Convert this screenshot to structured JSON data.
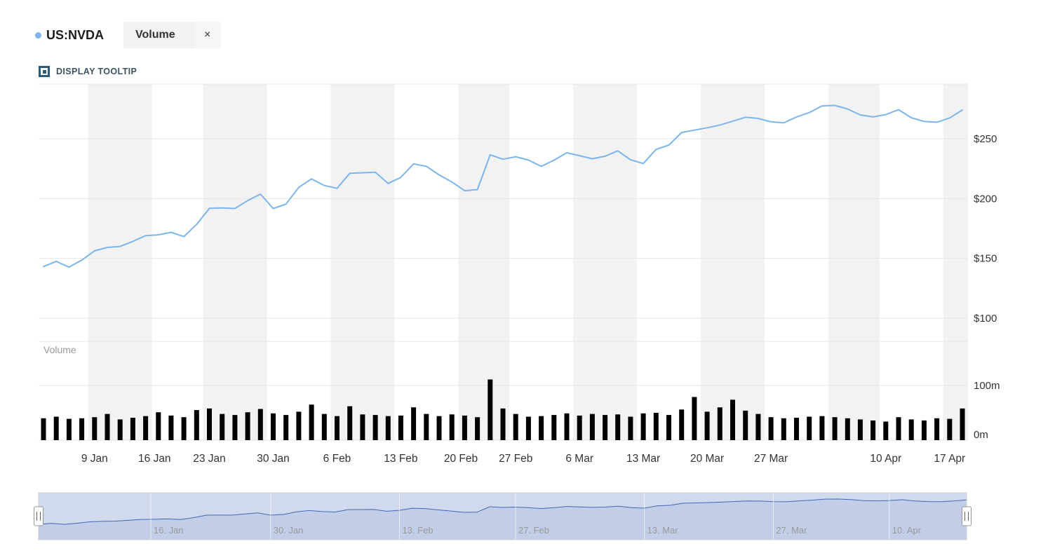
{
  "legend": {
    "symbol": "US:NVDA",
    "dot_color": "#7cb5ec",
    "indicator_tab": {
      "label": "Volume",
      "close": "×"
    }
  },
  "tooltip_toggle": {
    "label": "DISPLAY TOOLTIP"
  },
  "chart_data": {
    "type": "line",
    "title": "",
    "x": [
      "3 Jan",
      "4 Jan",
      "5 Jan",
      "6 Jan",
      "9 Jan",
      "10 Jan",
      "11 Jan",
      "12 Jan",
      "13 Jan",
      "17 Jan",
      "18 Jan",
      "19 Jan",
      "20 Jan",
      "23 Jan",
      "24 Jan",
      "25 Jan",
      "26 Jan",
      "27 Jan",
      "30 Jan",
      "31 Jan",
      "1 Feb",
      "2 Feb",
      "3 Feb",
      "6 Feb",
      "7 Feb",
      "8 Feb",
      "9 Feb",
      "10 Feb",
      "13 Feb",
      "14 Feb",
      "15 Feb",
      "16 Feb",
      "17 Feb",
      "21 Feb",
      "22 Feb",
      "23 Feb",
      "24 Feb",
      "27 Feb",
      "28 Feb",
      "1 Mar",
      "2 Mar",
      "3 Mar",
      "6 Mar",
      "7 Mar",
      "8 Mar",
      "9 Mar",
      "10 Mar",
      "13 Mar",
      "14 Mar",
      "15 Mar",
      "16 Mar",
      "17 Mar",
      "20 Mar",
      "21 Mar",
      "22 Mar",
      "23 Mar",
      "24 Mar",
      "27 Mar",
      "28 Mar",
      "29 Mar",
      "30 Mar",
      "31 Mar",
      "3 Apr",
      "4 Apr",
      "5 Apr",
      "6 Apr",
      "10 Apr",
      "11 Apr",
      "12 Apr",
      "13 Apr",
      "14 Apr",
      "17 Apr",
      "18 Apr"
    ],
    "series": [
      {
        "name": "US:NVDA",
        "type": "line",
        "color": "#7cb5ec",
        "values": [
          143.2,
          147.5,
          142.7,
          148.6,
          156.3,
          159.2,
          160.0,
          164.2,
          169.0,
          169.7,
          171.8,
          168.2,
          178.4,
          191.9,
          192.2,
          191.7,
          198.3,
          203.7,
          191.7,
          195.4,
          209.4,
          216.4,
          211.0,
          208.6,
          221.2,
          221.6,
          222.0,
          212.7,
          217.7,
          229.0,
          227.0,
          219.8,
          213.9,
          206.6,
          207.5,
          236.6,
          232.9,
          235.0,
          232.2,
          226.9,
          232.1,
          238.3,
          235.9,
          233.3,
          235.4,
          239.9,
          232.4,
          229.3,
          241.1,
          244.7,
          255.3,
          257.2,
          259.2,
          261.5,
          264.7,
          268.0,
          267.0,
          264.2,
          263.3,
          268.2,
          271.9,
          277.5,
          277.9,
          274.9,
          269.9,
          268.3,
          270.2,
          274.3,
          267.6,
          264.5,
          263.8,
          267.4,
          274.0
        ]
      },
      {
        "name": "Volume",
        "type": "bar",
        "color": "#000000",
        "values": [
          40,
          43,
          39,
          40,
          42,
          48,
          38,
          41,
          44,
          51,
          45,
          42,
          55,
          58,
          48,
          46,
          51,
          57,
          49,
          46,
          52,
          65,
          48,
          44,
          62,
          47,
          46,
          44,
          45,
          60,
          48,
          44,
          47,
          45,
          42,
          111,
          58,
          48,
          43,
          44,
          46,
          49,
          45,
          48,
          46,
          47,
          43,
          49,
          50,
          46,
          56,
          79,
          52,
          60,
          74,
          54,
          48,
          42,
          40,
          41,
          43,
          44,
          42,
          40,
          38,
          36,
          34,
          42,
          38,
          36,
          40,
          39,
          58
        ]
      }
    ],
    "price_axis": {
      "ticks": [
        {
          "label": "$250",
          "value": 250
        },
        {
          "label": "$200",
          "value": 200
        },
        {
          "label": "$150",
          "value": 150
        },
        {
          "label": "$100",
          "value": 100
        }
      ],
      "range": [
        80,
        296
      ]
    },
    "volume_axis": {
      "ticks": [
        {
          "label": "100m",
          "value": 100
        },
        {
          "label": "0m",
          "value": 0
        }
      ],
      "range": [
        0,
        135
      ]
    },
    "x_ticks": [
      {
        "label": "9 Jan",
        "i": 4
      },
      {
        "label": "16 Jan",
        "i": 8.7
      },
      {
        "label": "23 Jan",
        "i": 13
      },
      {
        "label": "30 Jan",
        "i": 18
      },
      {
        "label": "6 Feb",
        "i": 23
      },
      {
        "label": "13 Feb",
        "i": 28
      },
      {
        "label": "20 Feb",
        "i": 32.7
      },
      {
        "label": "27 Feb",
        "i": 37
      },
      {
        "label": "6 Mar",
        "i": 42
      },
      {
        "label": "13 Mar",
        "i": 47
      },
      {
        "label": "20 Mar",
        "i": 52
      },
      {
        "label": "27 Mar",
        "i": 57
      },
      {
        "label": "10 Apr",
        "i": 66
      },
      {
        "label": "17 Apr",
        "i": 71
      }
    ],
    "week_groups": [
      [
        0,
        3
      ],
      [
        4,
        8
      ],
      [
        9,
        12
      ],
      [
        13,
        17
      ],
      [
        18,
        22
      ],
      [
        23,
        27
      ],
      [
        28,
        32
      ],
      [
        33,
        36
      ],
      [
        37,
        41
      ],
      [
        42,
        46
      ],
      [
        47,
        51
      ],
      [
        52,
        56
      ],
      [
        57,
        61
      ],
      [
        62,
        65
      ],
      [
        66,
        70
      ],
      [
        71,
        72
      ]
    ],
    "pane_label": "Volume",
    "plot_band_color": "#f2f2f2",
    "grid_color": "#e6e6e6",
    "grid": "horizontal",
    "legend_position": "top-left"
  },
  "navigator": {
    "ticks": [
      {
        "label": "16. Jan",
        "i": 8.7
      },
      {
        "label": "30. Jan",
        "i": 18
      },
      {
        "label": "13. Feb",
        "i": 28
      },
      {
        "label": "27. Feb",
        "i": 37
      },
      {
        "label": "13. Mar",
        "i": 47
      },
      {
        "label": "27. Mar",
        "i": 57
      },
      {
        "label": "10. Apr",
        "i": 66
      }
    ],
    "line_color": "#335cad",
    "fill_color": "rgba(51,92,173,0.10)",
    "mask_color": "rgba(102,133,194,0.30)",
    "outline_color": "#cccccc"
  }
}
